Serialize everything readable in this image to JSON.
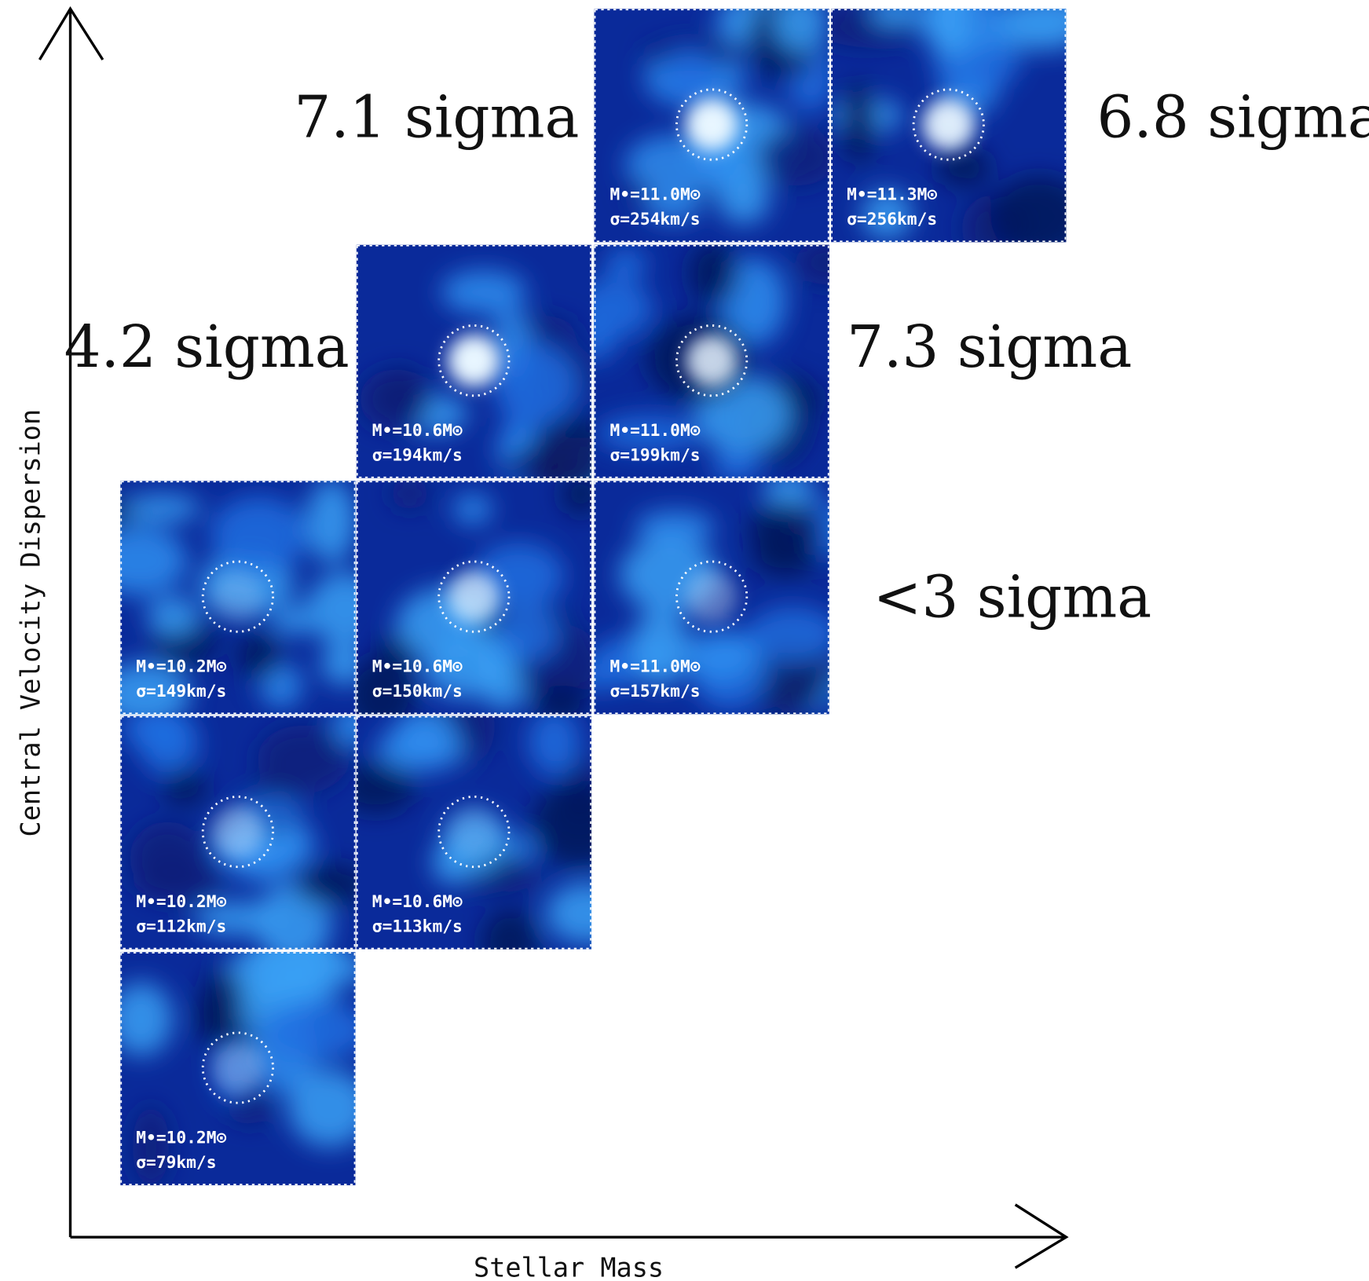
{
  "axes": {
    "y_label": "Central Velocity Dispersion",
    "x_label": "Stellar Mass"
  },
  "annotations": [
    "7.1 sigma",
    "6.8 sigma",
    "4.2 sigma",
    "7.3 sigma",
    "<3 sigma"
  ],
  "panels": [
    {
      "mass": "M•=11.0M⊙",
      "sigma": "σ=254km/s"
    },
    {
      "mass": "M•=11.3M⊙",
      "sigma": "σ=256km/s"
    },
    {
      "mass": "M•=10.6M⊙",
      "sigma": "σ=194km/s"
    },
    {
      "mass": "M•=11.0M⊙",
      "sigma": "σ=199km/s"
    },
    {
      "mass": "M•=10.2M⊙",
      "sigma": "σ=149km/s"
    },
    {
      "mass": "M•=10.6M⊙",
      "sigma": "σ=150km/s"
    },
    {
      "mass": "M•=11.0M⊙",
      "sigma": "σ=157km/s"
    },
    {
      "mass": "M•=10.2M⊙",
      "sigma": "σ=112km/s"
    },
    {
      "mass": "M•=10.6M⊙",
      "sigma": "σ=113km/s"
    },
    {
      "mass": "M•=10.2M⊙",
      "sigma": "σ=79km/s"
    }
  ]
}
